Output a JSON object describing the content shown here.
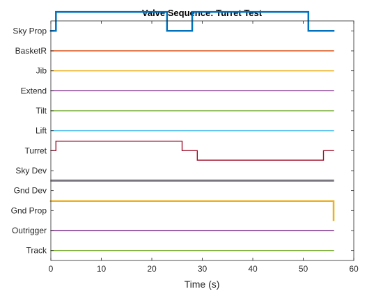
{
  "chart_data": {
    "type": "line",
    "title": "Valve Sequence: Turret Test",
    "xlabel": "Time (s)",
    "ylabel": "",
    "xlim": [
      0,
      60
    ],
    "xticks": [
      0,
      10,
      20,
      30,
      40,
      50,
      60
    ],
    "grid": false,
    "legend": "none",
    "categories": [
      "Sky Prop",
      "BasketR",
      "Jib",
      "Extend",
      "Tilt",
      "Lift",
      "Turret",
      "Sky Dev",
      "Gnd Dev",
      "Gnd Prop",
      "Outrigger",
      "Track"
    ],
    "series": [
      {
        "category": "Sky Prop",
        "color": "#0072BD",
        "thick": true,
        "points": [
          [
            0,
            0
          ],
          [
            1,
            0
          ],
          [
            1,
            1
          ],
          [
            23,
            1
          ],
          [
            23,
            0
          ],
          [
            28,
            0
          ],
          [
            28,
            1
          ],
          [
            51,
            1
          ],
          [
            51,
            0
          ],
          [
            56,
            0
          ]
        ]
      },
      {
        "category": "BasketR",
        "color": "#D95319",
        "thick": false,
        "points": [
          [
            0,
            0
          ],
          [
            56,
            0
          ]
        ]
      },
      {
        "category": "Jib",
        "color": "#EDB120",
        "thick": false,
        "points": [
          [
            0,
            0
          ],
          [
            56,
            0
          ]
        ]
      },
      {
        "category": "Extend",
        "color": "#7E2F8E",
        "thick": false,
        "points": [
          [
            0,
            0
          ],
          [
            56,
            0
          ]
        ]
      },
      {
        "category": "Tilt",
        "color": "#77AC30",
        "thick": false,
        "points": [
          [
            0,
            0
          ],
          [
            56,
            0
          ]
        ]
      },
      {
        "category": "Lift",
        "color": "#4DBEEE",
        "thick": false,
        "points": [
          [
            0,
            0
          ],
          [
            56,
            0
          ]
        ]
      },
      {
        "category": "Turret",
        "color": "#A2142F",
        "thick": false,
        "points": [
          [
            0,
            0
          ],
          [
            1,
            0
          ],
          [
            1,
            0.5
          ],
          [
            26,
            0.5
          ],
          [
            26,
            0
          ],
          [
            29,
            0
          ],
          [
            29,
            -0.5
          ],
          [
            54,
            -0.5
          ],
          [
            54,
            0
          ],
          [
            56,
            0
          ]
        ]
      },
      {
        "category": "Sky Dev",
        "color": "#0072BD",
        "thick": false,
        "points": [
          [
            0,
            -0.5
          ],
          [
            56,
            -0.5
          ]
        ]
      },
      {
        "category": "Gnd Dev",
        "color": "#D95319",
        "thick": false,
        "points": [
          [
            0,
            0.5
          ],
          [
            56,
            0.5
          ]
        ]
      },
      {
        "category": "Gnd Prop",
        "color": "#EDB120",
        "thick": true,
        "points": [
          [
            0,
            0.5
          ],
          [
            56,
            0.5
          ],
          [
            56,
            -0.5
          ]
        ]
      },
      {
        "category": "Outrigger",
        "color": "#7E2F8E",
        "thick": false,
        "points": [
          [
            0,
            0
          ],
          [
            56,
            0
          ]
        ]
      },
      {
        "category": "Track",
        "color": "#77AC30",
        "thick": false,
        "points": [
          [
            0,
            0
          ],
          [
            56,
            0
          ]
        ]
      }
    ]
  }
}
